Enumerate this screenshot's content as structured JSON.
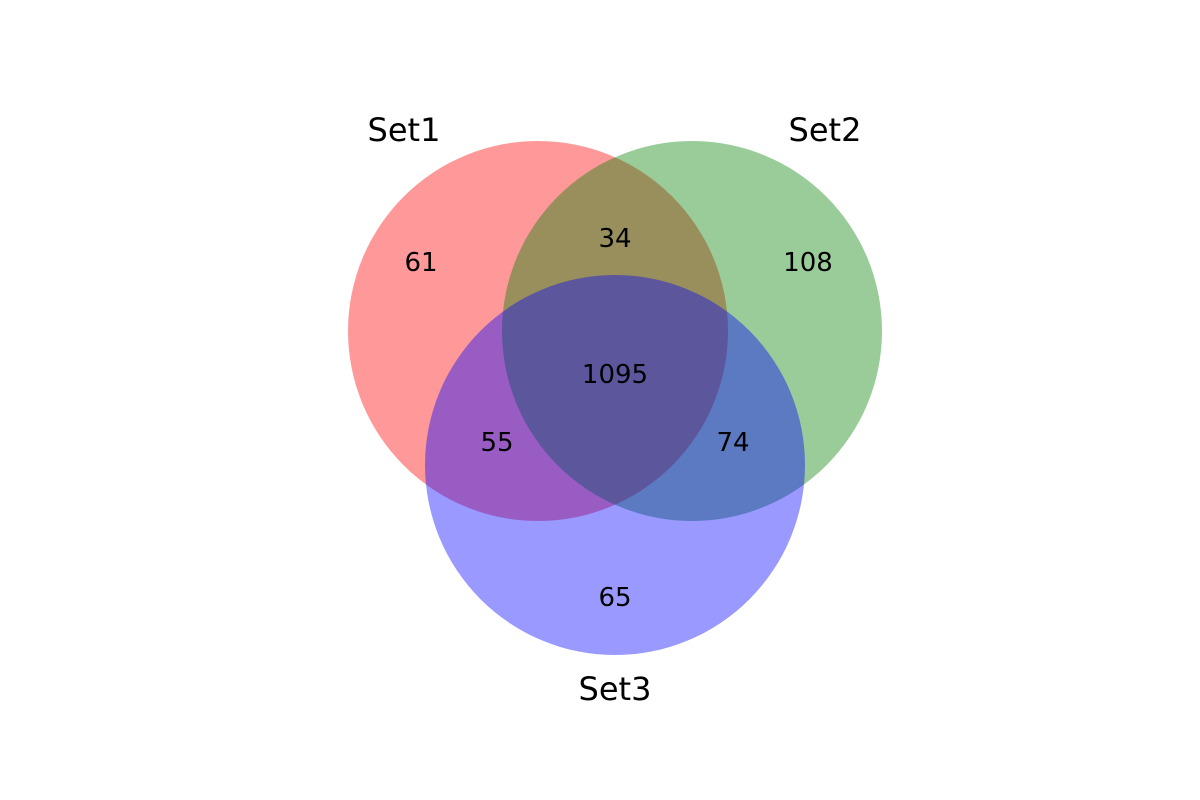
{
  "sets": [
    {
      "id": "set1",
      "label": "Set1",
      "color": "#ff0000",
      "opacity": 0.4
    },
    {
      "id": "set2",
      "label": "Set2",
      "color": "#008000",
      "opacity": 0.4
    },
    {
      "id": "set3",
      "label": "Set3",
      "color": "#0000ff",
      "opacity": 0.4
    }
  ],
  "regions": {
    "only_set1": "61",
    "only_set2": "108",
    "only_set3": "65",
    "set1_set2": "34",
    "set1_set3": "55",
    "set2_set3": "74",
    "all_three": "1095"
  }
}
